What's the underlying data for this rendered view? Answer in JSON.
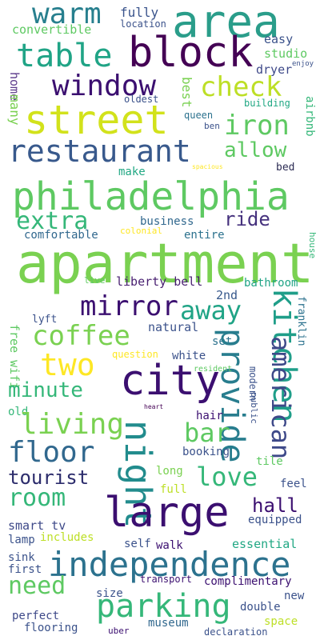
{
  "background": "#ffffff",
  "words": [
    {
      "text": "area",
      "color": "#2a9d8a"
    },
    {
      "text": "warm",
      "color": "#277f8e"
    },
    {
      "text": "fully",
      "color": "#3a548c"
    },
    {
      "text": "convertible",
      "color": "#5ec962"
    },
    {
      "text": "location",
      "color": "#3b528b"
    },
    {
      "text": "block",
      "color": "#440154"
    },
    {
      "text": "table",
      "color": "#20a486"
    },
    {
      "text": "easy",
      "color": "#3b528b"
    },
    {
      "text": "studio",
      "color": "#5ec962"
    },
    {
      "text": "enjoy",
      "color": "#3b528b"
    },
    {
      "text": "dryer",
      "color": "#3e4989"
    },
    {
      "text": "home",
      "color": "#5c3a8b"
    },
    {
      "text": "window",
      "color": "#3b0f70"
    },
    {
      "text": "check",
      "color": "#bddf26"
    },
    {
      "text": "best",
      "color": "#7ad151"
    },
    {
      "text": "many",
      "color": "#7ad151"
    },
    {
      "text": "oldest",
      "color": "#3b528b"
    },
    {
      "text": "building",
      "color": "#22a884"
    },
    {
      "text": "airbnb",
      "color": "#35b779"
    },
    {
      "text": "street",
      "color": "#d2e21b"
    },
    {
      "text": "iron",
      "color": "#5ec962"
    },
    {
      "text": "queen",
      "color": "#2c728e"
    },
    {
      "text": "ben",
      "color": "#3b528b"
    },
    {
      "text": "restaurant",
      "color": "#38598c"
    },
    {
      "text": "allow",
      "color": "#5ec962"
    },
    {
      "text": "spacious",
      "color": "#fde725"
    },
    {
      "text": "bed",
      "color": "#2c2c54"
    },
    {
      "text": "philadelphia",
      "color": "#5ec962"
    },
    {
      "text": "make",
      "color": "#22a884"
    },
    {
      "text": "extra",
      "color": "#35b779"
    },
    {
      "text": "ride",
      "color": "#46327e"
    },
    {
      "text": "business",
      "color": "#31688e"
    },
    {
      "text": "colonial",
      "color": "#fde725"
    },
    {
      "text": "comfortable",
      "color": "#31688e"
    },
    {
      "text": "entire",
      "color": "#2c728e"
    },
    {
      "text": "house",
      "color": "#35b779"
    },
    {
      "text": "apartment",
      "color": "#7ad151"
    },
    {
      "text": "live",
      "color": "#5ec962"
    },
    {
      "text": "liberty bell",
      "color": "#481f70"
    },
    {
      "text": "2nd",
      "color": "#38598c"
    },
    {
      "text": "bathroom",
      "color": "#20a486"
    },
    {
      "text": "mirror",
      "color": "#3b0f70"
    },
    {
      "text": "away",
      "color": "#20a486"
    },
    {
      "text": "lyft",
      "color": "#3b528b"
    },
    {
      "text": "franklin",
      "color": "#2c728e"
    },
    {
      "text": "kitchen",
      "color": "#1f9e89"
    },
    {
      "text": "natural",
      "color": "#3b528b"
    },
    {
      "text": "free wifi",
      "color": "#5ec962"
    },
    {
      "text": "coffee",
      "color": "#7ad151"
    },
    {
      "text": "set",
      "color": "#2c728e"
    },
    {
      "text": "question",
      "color": "#fde725"
    },
    {
      "text": "provide",
      "color": "#287d8e"
    },
    {
      "text": "white",
      "color": "#3b528b"
    },
    {
      "text": "two",
      "color": "#fde725"
    },
    {
      "text": "resident",
      "color": "#5ec962"
    },
    {
      "text": "american",
      "color": "#3e4989"
    },
    {
      "text": "modern",
      "color": "#3b528b"
    },
    {
      "text": "city",
      "color": "#3b0f70"
    },
    {
      "text": "minute",
      "color": "#35b779"
    },
    {
      "text": "public",
      "color": "#3b528b"
    },
    {
      "text": "heart",
      "color": "#440154"
    },
    {
      "text": "old",
      "color": "#35b779"
    },
    {
      "text": "hair",
      "color": "#3b0f70"
    },
    {
      "text": "living",
      "color": "#7ad151"
    },
    {
      "text": "bar",
      "color": "#5ec962"
    },
    {
      "text": "night",
      "color": "#228c8d"
    },
    {
      "text": "floor",
      "color": "#31688e"
    },
    {
      "text": "booking",
      "color": "#3b528b"
    },
    {
      "text": "tile",
      "color": "#5ec962"
    },
    {
      "text": "tourist",
      "color": "#2c2c6c"
    },
    {
      "text": "long",
      "color": "#7ad151"
    },
    {
      "text": "love",
      "color": "#35b779"
    },
    {
      "text": "feel",
      "color": "#3b528b"
    },
    {
      "text": "room",
      "color": "#35b779"
    },
    {
      "text": "full",
      "color": "#bddf26"
    },
    {
      "text": "hall",
      "color": "#3b0f70"
    },
    {
      "text": "large",
      "color": "#3b0f70"
    },
    {
      "text": "smart tv",
      "color": "#3e4989"
    },
    {
      "text": "equipped",
      "color": "#3b528b"
    },
    {
      "text": "includes",
      "color": "#bddf26"
    },
    {
      "text": "lamp",
      "color": "#3b528b"
    },
    {
      "text": "self",
      "color": "#3b528b"
    },
    {
      "text": "walk",
      "color": "#3b0f70"
    },
    {
      "text": "essential",
      "color": "#22a884"
    },
    {
      "text": "sink",
      "color": "#3b528b"
    },
    {
      "text": "independence",
      "color": "#2c728e"
    },
    {
      "text": "first",
      "color": "#3b528b"
    },
    {
      "text": "need",
      "color": "#5ec962"
    },
    {
      "text": "transport",
      "color": "#3b0f70"
    },
    {
      "text": "complimentary",
      "color": "#3b0f70"
    },
    {
      "text": "size",
      "color": "#3b528b"
    },
    {
      "text": "new",
      "color": "#3b528b"
    },
    {
      "text": "parking",
      "color": "#35b779"
    },
    {
      "text": "double",
      "color": "#3b528b"
    },
    {
      "text": "perfect",
      "color": "#3e4989"
    },
    {
      "text": "museum",
      "color": "#31688e"
    },
    {
      "text": "space",
      "color": "#bddf26"
    },
    {
      "text": "flooring",
      "color": "#3b528b"
    },
    {
      "text": "uber",
      "color": "#3b0f70"
    },
    {
      "text": "declaration",
      "color": "#3b528b"
    }
  ]
}
